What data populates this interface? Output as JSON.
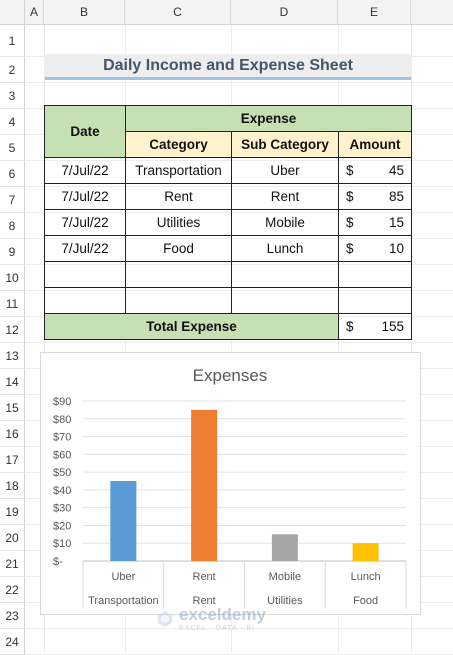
{
  "columns": [
    "A",
    "B",
    "C",
    "D",
    "E"
  ],
  "rows": [
    "1",
    "2",
    "3",
    "4",
    "5",
    "6",
    "7",
    "8",
    "9",
    "10",
    "11",
    "12",
    "13",
    "14",
    "15",
    "16",
    "17",
    "18",
    "19",
    "20",
    "21",
    "22",
    "23",
    "24"
  ],
  "sheet_title": "Daily Income and Expense Sheet",
  "table": {
    "date_header": "Date",
    "expense_header": "Expense",
    "category_header": "Category",
    "subcategory_header": "Sub Category",
    "amount_header": "Amount",
    "currency": "$",
    "rows": [
      {
        "date": "7/Jul/22",
        "category": "Transportation",
        "sub": "Uber",
        "amount": "45"
      },
      {
        "date": "7/Jul/22",
        "category": "Rent",
        "sub": "Rent",
        "amount": "85"
      },
      {
        "date": "7/Jul/22",
        "category": "Utilities",
        "sub": "Mobile",
        "amount": "15"
      },
      {
        "date": "7/Jul/22",
        "category": "Food",
        "sub": "Lunch",
        "amount": "10"
      }
    ],
    "total_label": "Total Expense",
    "total_amount": "155"
  },
  "chart_data": {
    "type": "bar",
    "title": "Expenses",
    "categories": [
      [
        "Uber",
        "Transportation"
      ],
      [
        "Rent",
        "Rent"
      ],
      [
        "Mobile",
        "Utilities"
      ],
      [
        "Lunch",
        "Food"
      ]
    ],
    "values": [
      45,
      85,
      15,
      10
    ],
    "colors": [
      "#5b9bd5",
      "#ed7d31",
      "#a5a5a5",
      "#ffc000"
    ],
    "ylim": [
      0,
      90
    ],
    "yticks": [
      "$-",
      "$10",
      "$20",
      "$30",
      "$40",
      "$50",
      "$60",
      "$70",
      "$80",
      "$90"
    ],
    "grid": true
  },
  "watermark": {
    "name": "exceldemy",
    "tag": "EXCEL · DATA · BI"
  }
}
